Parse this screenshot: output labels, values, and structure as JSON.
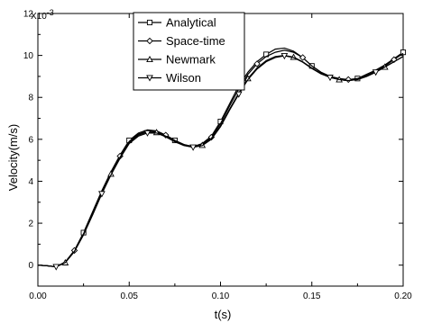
{
  "chart_data": {
    "type": "line",
    "title": "",
    "xlabel": "t(s)",
    "ylabel": "Velocity(m/s)",
    "y_scale_label": "X10",
    "y_scale_exponent": "-3",
    "xlim": [
      0.0,
      0.2
    ],
    "ylim": [
      -1.0,
      12.0
    ],
    "x_ticks": [
      0.0,
      0.05,
      0.1,
      0.15,
      0.2
    ],
    "x_tick_labels": [
      "0.00",
      "0.05",
      "0.10",
      "0.15",
      "0.20"
    ],
    "y_ticks": [
      0,
      2,
      4,
      6,
      8,
      10,
      12
    ],
    "y_tick_labels": [
      "0",
      "2",
      "4",
      "6",
      "8",
      "10",
      "12"
    ],
    "grid": false,
    "legend_position": "top-center",
    "series": [
      {
        "name": "Analytical",
        "marker": "square",
        "x": [
          0.0,
          0.005,
          0.01,
          0.015,
          0.02,
          0.025,
          0.03,
          0.035,
          0.04,
          0.045,
          0.05,
          0.055,
          0.06,
          0.065,
          0.07,
          0.075,
          0.08,
          0.085,
          0.09,
          0.095,
          0.1,
          0.105,
          0.11,
          0.115,
          0.12,
          0.125,
          0.13,
          0.135,
          0.14,
          0.145,
          0.15,
          0.155,
          0.16,
          0.165,
          0.17,
          0.175,
          0.18,
          0.185,
          0.19,
          0.195,
          0.2
        ],
        "y": [
          0.0,
          -0.03,
          -0.08,
          0.15,
          0.7,
          1.55,
          2.55,
          3.55,
          4.45,
          5.25,
          5.95,
          6.3,
          6.45,
          6.4,
          6.2,
          5.95,
          5.75,
          5.65,
          5.8,
          6.15,
          6.85,
          7.7,
          8.55,
          9.2,
          9.7,
          10.05,
          10.3,
          10.35,
          10.2,
          9.9,
          9.5,
          9.2,
          9.0,
          8.85,
          8.8,
          8.9,
          9.1,
          9.3,
          9.55,
          9.85,
          10.15
        ]
      },
      {
        "name": "Space-time",
        "marker": "diamond",
        "x": [
          0.0,
          0.005,
          0.01,
          0.015,
          0.02,
          0.025,
          0.03,
          0.035,
          0.04,
          0.045,
          0.05,
          0.055,
          0.06,
          0.065,
          0.07,
          0.075,
          0.08,
          0.085,
          0.09,
          0.095,
          0.1,
          0.105,
          0.11,
          0.115,
          0.12,
          0.125,
          0.13,
          0.135,
          0.14,
          0.145,
          0.15,
          0.155,
          0.16,
          0.165,
          0.17,
          0.175,
          0.18,
          0.185,
          0.19,
          0.195,
          0.2
        ],
        "y": [
          0.0,
          -0.03,
          -0.08,
          0.15,
          0.7,
          1.5,
          2.5,
          3.5,
          4.4,
          5.2,
          5.9,
          6.25,
          6.4,
          6.38,
          6.2,
          5.95,
          5.75,
          5.65,
          5.78,
          6.1,
          6.75,
          7.6,
          8.4,
          9.1,
          9.6,
          9.95,
          10.15,
          10.25,
          10.15,
          9.9,
          9.5,
          9.2,
          9.0,
          8.9,
          8.85,
          8.9,
          9.05,
          9.25,
          9.5,
          9.8,
          10.1
        ]
      },
      {
        "name": "Newmark",
        "marker": "triangle-up",
        "x": [
          0.0,
          0.005,
          0.01,
          0.015,
          0.02,
          0.025,
          0.03,
          0.035,
          0.04,
          0.045,
          0.05,
          0.055,
          0.06,
          0.065,
          0.07,
          0.075,
          0.08,
          0.085,
          0.09,
          0.095,
          0.1,
          0.105,
          0.11,
          0.115,
          0.12,
          0.125,
          0.13,
          0.135,
          0.14,
          0.145,
          0.15,
          0.155,
          0.16,
          0.165,
          0.17,
          0.175,
          0.18,
          0.185,
          0.19,
          0.195,
          0.2
        ],
        "y": [
          0.0,
          -0.03,
          -0.08,
          0.12,
          0.65,
          1.45,
          2.45,
          3.45,
          4.35,
          5.15,
          5.85,
          6.2,
          6.35,
          6.33,
          6.15,
          5.9,
          5.72,
          5.62,
          5.72,
          6.05,
          6.65,
          7.45,
          8.2,
          8.9,
          9.4,
          9.75,
          9.95,
          10.0,
          9.92,
          9.7,
          9.4,
          9.15,
          8.95,
          8.85,
          8.8,
          8.85,
          9.0,
          9.2,
          9.45,
          9.7,
          9.95
        ]
      },
      {
        "name": "Wilson",
        "marker": "triangle-down",
        "x": [
          0.0,
          0.005,
          0.01,
          0.015,
          0.02,
          0.025,
          0.03,
          0.035,
          0.04,
          0.045,
          0.05,
          0.055,
          0.06,
          0.065,
          0.07,
          0.075,
          0.08,
          0.085,
          0.09,
          0.095,
          0.1,
          0.105,
          0.11,
          0.115,
          0.12,
          0.125,
          0.13,
          0.135,
          0.14,
          0.145,
          0.15,
          0.155,
          0.16,
          0.165,
          0.17,
          0.175,
          0.18,
          0.185,
          0.19,
          0.195,
          0.2
        ],
        "y": [
          0.0,
          -0.03,
          -0.08,
          0.12,
          0.65,
          1.45,
          2.4,
          3.4,
          4.3,
          5.1,
          5.8,
          6.15,
          6.3,
          6.3,
          6.12,
          5.88,
          5.7,
          5.62,
          5.7,
          6.0,
          6.6,
          7.4,
          8.15,
          8.85,
          9.35,
          9.7,
          9.9,
          9.98,
          9.9,
          9.68,
          9.38,
          9.12,
          8.95,
          8.85,
          8.8,
          8.85,
          9.0,
          9.2,
          9.45,
          9.7,
          9.95
        ]
      }
    ]
  }
}
